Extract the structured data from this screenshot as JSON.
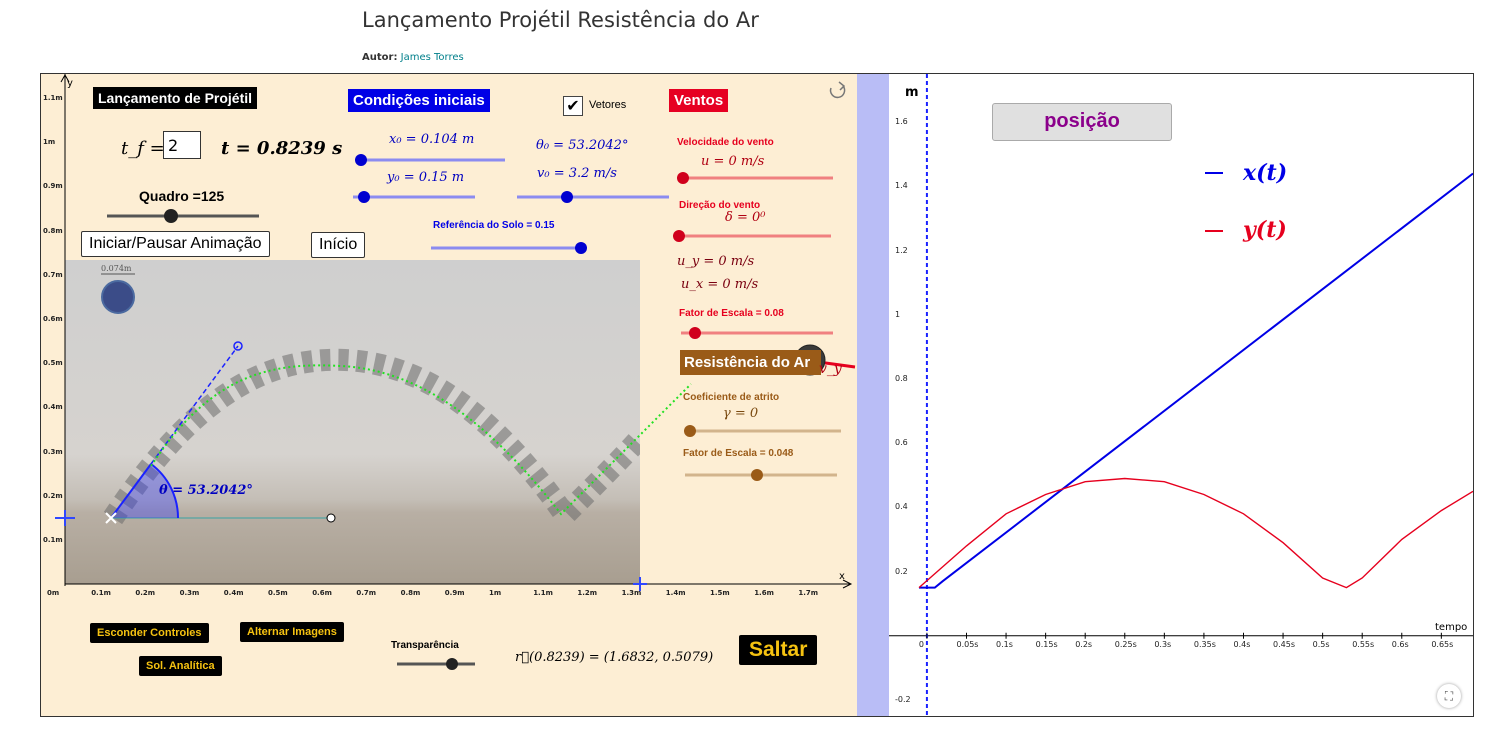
{
  "page": {
    "title": "Lançamento Projétil Resistência do Ar",
    "author_label": "Autor:",
    "author_name": "James Torres"
  },
  "left": {
    "title_label": "Lançamento de Projétil",
    "initial_conditions_label": "Condições iniciais",
    "winds_label": "Ventos",
    "vectors_label": "Vetores",
    "vectors_checked": true,
    "tf_label": "t_f =",
    "tf_value": "2",
    "t_display": "t = 0.8239  s",
    "frame_label": "Quadro =125",
    "start_pause_button": "Iniciar/Pausar Animação",
    "start_button": "Início",
    "x0": "x₀ = 0.104 m",
    "y0": "y₀ = 0.15 m",
    "theta0": "θ₀ = 53.2042°",
    "v0": "v₀ = 3.2 m/s",
    "ground_ref_label": "Referência do Solo = 0.15",
    "wind_speed_label": "Velocidade do vento",
    "wind_speed": "u = 0 m/s",
    "wind_dir_label": "Direção do vento",
    "wind_dir": "δ = 0⁰",
    "uy": "u_y = 0 m/s",
    "ux": "u_x = 0 m/s",
    "scale_factor_wind": "Fator de Escala =  0.08",
    "air_resistance_label": "Resistência do Ar",
    "friction_coef_label": "Coeficiente de atrito",
    "friction_coef": "γ = 0",
    "scale_factor_air": "Fator de Escala = 0.048",
    "vy_label": "v_y",
    "theta_angle": "θ = 53.2042°",
    "ball_scale": "0.074m",
    "hide_controls_button": "Esconder Controles",
    "toggle_images_button": "Alternar Imagens",
    "analytic_button": "Sol. Analítica",
    "transparency_label": "Transparência",
    "position_vector": "r⃗(0.8239) = (1.6832,  0.5079)",
    "jump_button": "Saltar",
    "axis_x_label": "x",
    "axis_y_label": "y",
    "x_ticks": [
      "0m",
      "0.1m",
      "0.2m",
      "0.3m",
      "0.4m",
      "0.5m",
      "0.6m",
      "0.7m",
      "0.8m",
      "0.9m",
      "1m",
      "1.1m",
      "1.2m",
      "1.3m",
      "1.4m",
      "1.5m",
      "1.6m",
      "1.7m"
    ],
    "y_ticks": [
      "0.1m",
      "0.2m",
      "0.3m",
      "0.4m",
      "0.5m",
      "0.6m",
      "0.7m",
      "0.8m",
      "0.9m",
      "1m",
      "1.1m"
    ]
  },
  "right": {
    "unit_label": "m",
    "mode_button": "posição",
    "legend_x": "x(t)",
    "legend_y": "y(t)",
    "x_axis_label": "tempo",
    "x_ticks": [
      "0",
      "0.05s",
      "0.1s",
      "0.15s",
      "0.2s",
      "0.25s",
      "0.3s",
      "0.35s",
      "0.4s",
      "0.45s",
      "0.5s",
      "0.55s",
      "0.6s",
      "0.65s"
    ],
    "y_ticks": [
      "1.6",
      "1.4",
      "1.2",
      "1",
      "0.8",
      "0.6",
      "0.4",
      "0.2",
      "-0.2"
    ],
    "colors": {
      "x_series": "#0000e6",
      "y_series": "#e6001e"
    }
  },
  "chart_data": {
    "type": "line",
    "xlabel": "tempo",
    "ylabel": "m",
    "xlim": [
      -0.01,
      0.69
    ],
    "ylim": [
      -0.25,
      1.75
    ],
    "series": [
      {
        "name": "x(t)",
        "x": [
          -0.01,
          0.01,
          0.02,
          0.69
        ],
        "y": [
          0.15,
          0.15,
          0.17,
          1.44
        ]
      },
      {
        "name": "y(t)",
        "x": [
          -0.01,
          0.05,
          0.1,
          0.15,
          0.2,
          0.25,
          0.3,
          0.35,
          0.4,
          0.45,
          0.5,
          0.53,
          0.55,
          0.6,
          0.65,
          0.69
        ],
        "y": [
          0.15,
          0.28,
          0.38,
          0.44,
          0.48,
          0.49,
          0.48,
          0.44,
          0.38,
          0.29,
          0.18,
          0.15,
          0.18,
          0.3,
          0.39,
          0.45
        ]
      }
    ]
  }
}
